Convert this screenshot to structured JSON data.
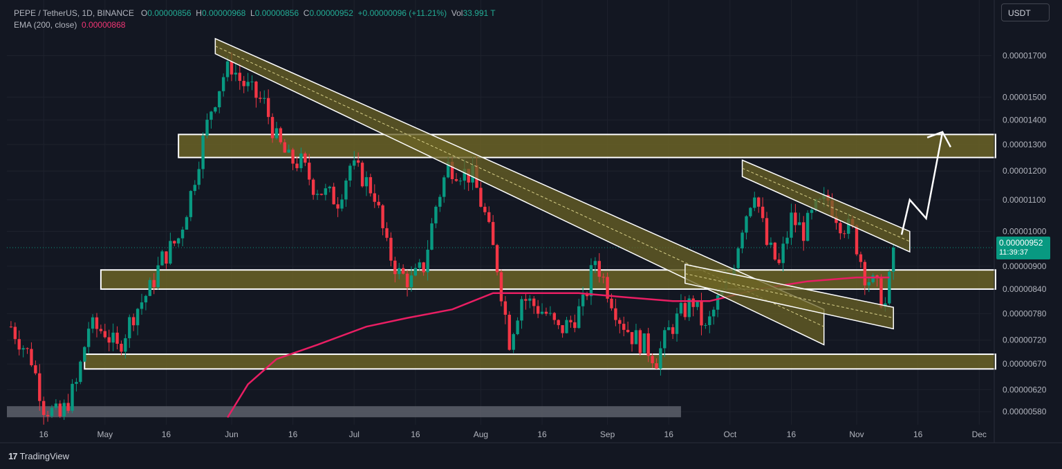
{
  "legend": {
    "symbol": "PEPE / TetherUS, 1D, BINANCE",
    "o_label": "O",
    "o_value": "0.00000856",
    "h_label": "H",
    "h_value": "0.00000968",
    "l_label": "L",
    "l_value": "0.00000856",
    "c_label": "C",
    "c_value": "0.00000952",
    "change": "+0.00000096 (+11.21%)",
    "vol_label": "Vol",
    "vol_value": "33.991 T",
    "ema_label": "EMA (200, close)",
    "ema_value": "0.00000868"
  },
  "toolbar": {
    "currency": "USDT"
  },
  "price_badge": {
    "price": "0.00000952",
    "countdown": "11:39:37"
  },
  "branding": {
    "name": "TradingView"
  },
  "colors": {
    "background": "#131722",
    "up": "#089981",
    "down": "#f23645",
    "ema": "#e91e63",
    "zone_fill": "#6b6326",
    "zone_border": "#ffffff",
    "axis_text": "#b2b5be"
  },
  "chart_data": {
    "type": "candlestick",
    "title": "",
    "y_scale": "log",
    "ylim": [
      5.6e-06,
      1.85e-05
    ],
    "y_ticks": [
      {
        "value": 1.7e-05,
        "label": "0.00001700"
      },
      {
        "value": 1.5e-05,
        "label": "0.00001500"
      },
      {
        "value": 1.4e-05,
        "label": "0.00001400"
      },
      {
        "value": 1.3e-05,
        "label": "0.00001300"
      },
      {
        "value": 1.2e-05,
        "label": "0.00001200"
      },
      {
        "value": 1.1e-05,
        "label": "0.00001100"
      },
      {
        "value": 1e-05,
        "label": "0.00001000"
      },
      {
        "value": 9e-06,
        "label": "0.00000900"
      },
      {
        "value": 8.4e-06,
        "label": "0.00000840"
      },
      {
        "value": 7.8e-06,
        "label": "0.00000780"
      },
      {
        "value": 7.2e-06,
        "label": "0.00000720"
      },
      {
        "value": 6.7e-06,
        "label": "0.00000670"
      },
      {
        "value": 6.2e-06,
        "label": "0.00000620"
      },
      {
        "value": 5.8e-06,
        "label": "0.00000580"
      }
    ],
    "x_range": [
      "2023-04-07",
      "2023-12-04"
    ],
    "x_ticks": [
      {
        "date": "2023-04-16",
        "label": "16"
      },
      {
        "date": "2023-05-01",
        "label": "May"
      },
      {
        "date": "2023-05-16",
        "label": "16"
      },
      {
        "date": "2023-06-01",
        "label": "Jun"
      },
      {
        "date": "2023-06-16",
        "label": "16"
      },
      {
        "date": "2023-07-01",
        "label": "Jul"
      },
      {
        "date": "2023-07-16",
        "label": "16"
      },
      {
        "date": "2023-08-01",
        "label": "Aug"
      },
      {
        "date": "2023-08-16",
        "label": "16"
      },
      {
        "date": "2023-09-01",
        "label": "Sep"
      },
      {
        "date": "2023-09-16",
        "label": "16"
      },
      {
        "date": "2023-10-01",
        "label": "Oct"
      },
      {
        "date": "2023-10-16",
        "label": "16"
      },
      {
        "date": "2023-11-01",
        "label": "Nov"
      },
      {
        "date": "2023-11-16",
        "label": "16"
      },
      {
        "date": "2023-12-01",
        "label": "Dec"
      }
    ],
    "close_path": [
      [
        "2023-04-08",
        7.5e-06
      ],
      [
        "2023-04-13",
        6.8e-06
      ],
      [
        "2023-04-16",
        5.9e-06
      ],
      [
        "2023-04-20",
        5.7e-06
      ],
      [
        "2023-04-24",
        6.3e-06
      ],
      [
        "2023-04-27",
        7.5e-06
      ],
      [
        "2023-05-01",
        7.4e-06
      ],
      [
        "2023-05-04",
        7e-06
      ],
      [
        "2023-05-08",
        7.8e-06
      ],
      [
        "2023-05-12",
        8.4e-06
      ],
      [
        "2023-05-15",
        9.2e-06
      ],
      [
        "2023-05-19",
        9.8e-06
      ],
      [
        "2023-05-22",
        1.12e-05
      ],
      [
        "2023-05-24",
        1.25e-05
      ],
      [
        "2023-05-27",
        1.45e-05
      ],
      [
        "2023-05-30",
        1.6e-05
      ],
      [
        "2023-06-01",
        1.65e-05
      ],
      [
        "2023-06-03",
        1.58e-05
      ],
      [
        "2023-06-06",
        1.52e-05
      ],
      [
        "2023-06-09",
        1.47e-05
      ],
      [
        "2023-06-12",
        1.32e-05
      ],
      [
        "2023-06-15",
        1.24e-05
      ],
      [
        "2023-06-18",
        1.23e-05
      ],
      [
        "2023-06-21",
        1.15e-05
      ],
      [
        "2023-06-24",
        1.12e-05
      ],
      [
        "2023-06-27",
        1.1e-05
      ],
      [
        "2023-06-30",
        1.22e-05
      ],
      [
        "2023-07-03",
        1.18e-05
      ],
      [
        "2023-07-06",
        1.12e-05
      ],
      [
        "2023-07-09",
        9.5e-06
      ],
      [
        "2023-07-12",
        8.8e-06
      ],
      [
        "2023-07-15",
        8.6e-06
      ],
      [
        "2023-07-18",
        9e-06
      ],
      [
        "2023-07-21",
        1.08e-05
      ],
      [
        "2023-07-24",
        1.22e-05
      ],
      [
        "2023-07-27",
        1.2e-05
      ],
      [
        "2023-07-30",
        1.18e-05
      ],
      [
        "2023-08-02",
        1.05e-05
      ],
      [
        "2023-08-05",
        9e-06
      ],
      [
        "2023-08-08",
        7.2e-06
      ],
      [
        "2023-08-11",
        8.2e-06
      ],
      [
        "2023-08-14",
        8e-06
      ],
      [
        "2023-08-17",
        7.8e-06
      ],
      [
        "2023-08-20",
        7.4e-06
      ],
      [
        "2023-08-23",
        7.6e-06
      ],
      [
        "2023-08-26",
        8e-06
      ],
      [
        "2023-08-29",
        9.2e-06
      ],
      [
        "2023-09-01",
        8.4e-06
      ],
      [
        "2023-09-04",
        7.7e-06
      ],
      [
        "2023-09-07",
        7.3e-06
      ],
      [
        "2023-09-10",
        7.1e-06
      ],
      [
        "2023-09-13",
        6.8e-06
      ],
      [
        "2023-09-16",
        7.4e-06
      ],
      [
        "2023-09-19",
        7.8e-06
      ],
      [
        "2023-09-22",
        8.1e-06
      ],
      [
        "2023-09-25",
        7.4e-06
      ],
      [
        "2023-09-28",
        8.1e-06
      ],
      [
        "2023-10-01",
        8.7e-06
      ],
      [
        "2023-10-04",
        1.02e-05
      ],
      [
        "2023-10-07",
        1.14e-05
      ],
      [
        "2023-10-10",
        9.6e-06
      ],
      [
        "2023-10-13",
        9e-06
      ],
      [
        "2023-10-16",
        1.04e-05
      ],
      [
        "2023-10-19",
        1e-05
      ],
      [
        "2023-10-22",
        1.07e-05
      ],
      [
        "2023-10-25",
        1.1e-05
      ],
      [
        "2023-10-28",
        1.03e-05
      ],
      [
        "2023-10-31",
        1e-05
      ],
      [
        "2023-11-03",
        8.8e-06
      ],
      [
        "2023-11-06",
        8.4e-06
      ],
      [
        "2023-11-08",
        8e-06
      ],
      [
        "2023-11-09",
        8.6e-06
      ],
      [
        "2023-11-10",
        9.52e-06
      ]
    ],
    "ema_200": [
      [
        "2023-05-31",
        5.7e-06
      ],
      [
        "2023-06-05",
        6.3e-06
      ],
      [
        "2023-06-12",
        6.8e-06
      ],
      [
        "2023-06-22",
        7.1e-06
      ],
      [
        "2023-07-04",
        7.5e-06
      ],
      [
        "2023-07-14",
        7.7e-06
      ],
      [
        "2023-07-25",
        7.9e-06
      ],
      [
        "2023-08-04",
        8.3e-06
      ],
      [
        "2023-08-15",
        8.3e-06
      ],
      [
        "2023-08-25",
        8.3e-06
      ],
      [
        "2023-09-05",
        8.2e-06
      ],
      [
        "2023-09-17",
        8.1e-06
      ],
      [
        "2023-09-26",
        8.1e-06
      ],
      [
        "2023-10-08",
        8.4e-06
      ],
      [
        "2023-10-20",
        8.6e-06
      ],
      [
        "2023-11-01",
        8.7e-06
      ],
      [
        "2023-11-09",
        8.7e-06
      ]
    ],
    "zones": [
      {
        "from": "2023-05-19",
        "to": "2023-12-05",
        "low": 1.25e-05,
        "high": 1.34e-05
      },
      {
        "from": "2023-04-30",
        "to": "2023-12-05",
        "low": 8.4e-06,
        "high": 8.9e-06
      },
      {
        "from": "2023-04-26",
        "to": "2023-12-05",
        "low": 6.6e-06,
        "high": 6.9e-06
      }
    ],
    "trendlines": [
      {
        "p1": [
          "2023-05-28",
          1.75e-05
        ],
        "p2": [
          "2023-10-24",
          7.5e-06
        ],
        "width": 4e-07
      },
      {
        "p1": [
          "2023-10-04",
          1.21e-05
        ],
        "p2": [
          "2023-11-14",
          9.7e-06
        ],
        "width": 3e-07
      },
      {
        "p1": [
          "2023-09-20",
          8.8e-06
        ],
        "p2": [
          "2023-11-10",
          7.7e-06
        ],
        "width": 2.5e-07
      }
    ],
    "projection": [
      [
        "2023-11-12",
        9.9e-06
      ],
      [
        "2023-11-14",
        1.1e-05
      ],
      [
        "2023-11-18",
        1.04e-05
      ],
      [
        "2023-11-22",
        1.35e-05
      ],
      [
        "2023-11-24",
        1.29e-05
      ]
    ],
    "volume_strip": {
      "from": "2023-04-07",
      "to": "2023-09-19",
      "level": 5.8e-06
    },
    "last_price": 9.52e-06
  }
}
